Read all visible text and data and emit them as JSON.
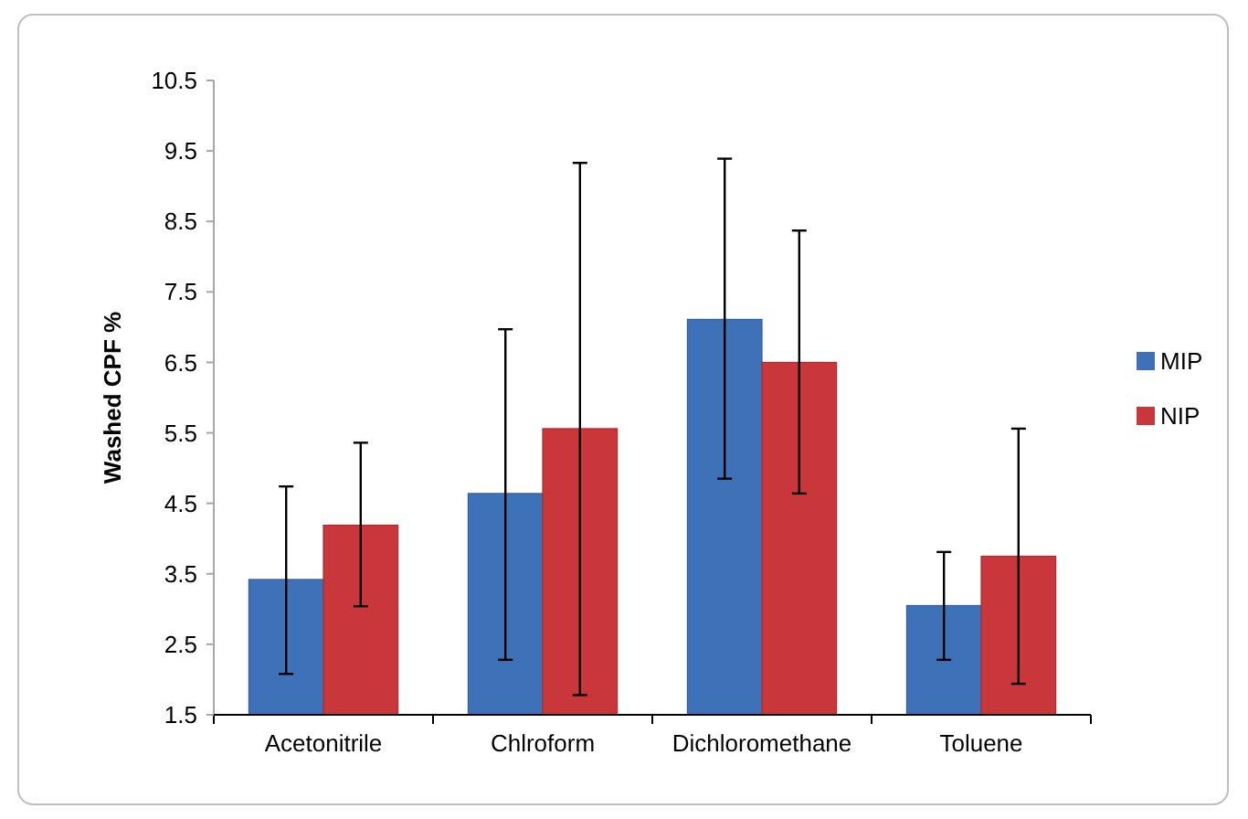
{
  "chart_data": {
    "type": "bar",
    "ylabel": "Washed CPF %",
    "categories": [
      "Acetonitrile",
      "Chlroform",
      "Dichloromethane",
      "Toluene"
    ],
    "series": [
      {
        "name": "MIP",
        "color": "#3d72b8",
        "values": [
          3.42,
          4.64,
          7.11,
          3.05
        ],
        "errors": [
          [
            2.08,
            4.74
          ],
          [
            2.28,
            6.97
          ],
          [
            4.85,
            9.39
          ],
          [
            2.28,
            3.81
          ]
        ]
      },
      {
        "name": "NIP",
        "color": "#c9373a",
        "values": [
          4.19,
          5.56,
          6.5,
          3.75
        ],
        "errors": [
          [
            3.04,
            5.36
          ],
          [
            1.78,
            9.33
          ],
          [
            4.64,
            8.37
          ],
          [
            1.94,
            5.56
          ]
        ]
      }
    ],
    "ylim": [
      1.5,
      10.5
    ],
    "yticks": [
      1.5,
      2.5,
      3.5,
      4.5,
      5.5,
      6.5,
      7.5,
      8.5,
      9.5,
      10.5
    ],
    "grid": false,
    "legend": "right"
  }
}
